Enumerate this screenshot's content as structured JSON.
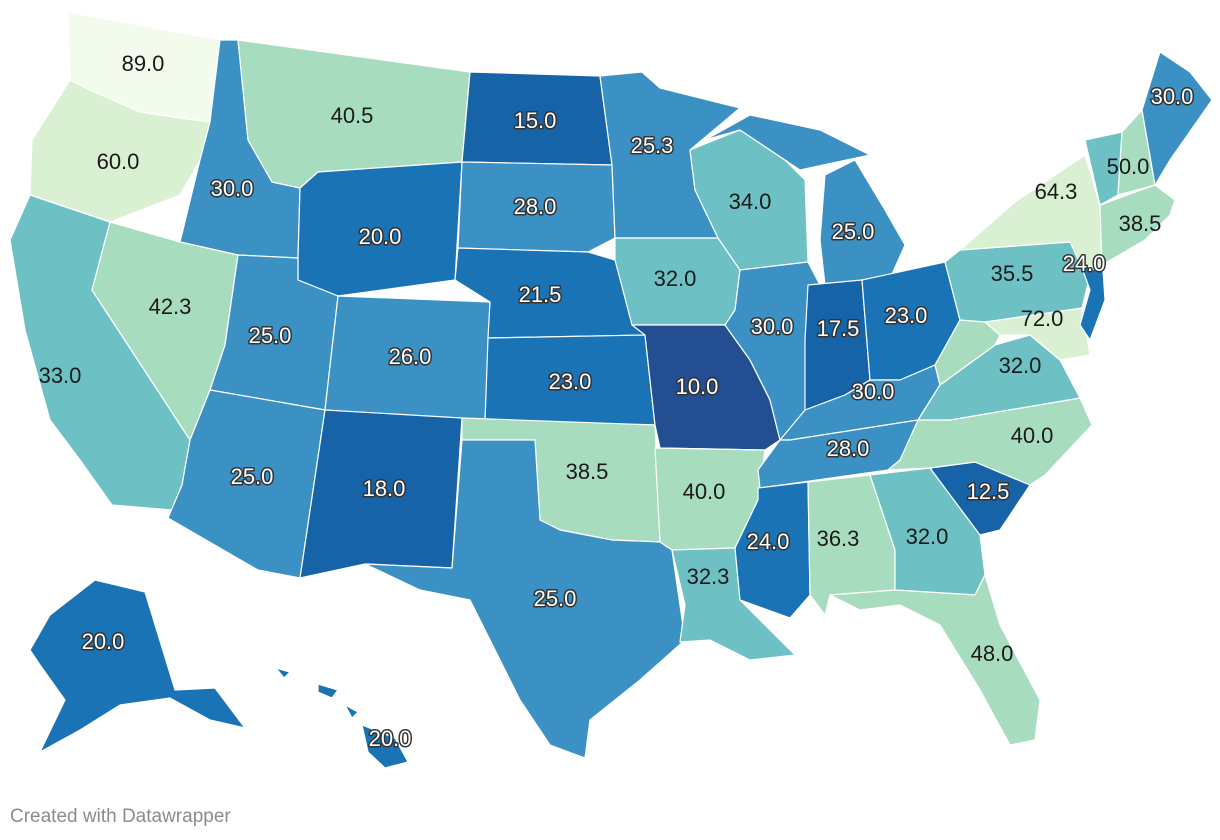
{
  "credit": "Created with Datawrapper",
  "scale_colors": [
    "#f3fbec",
    "#d9f1d2",
    "#a8dcbe",
    "#6dc0c4",
    "#3b90c4",
    "#1a73b5",
    "#1763a8",
    "#234e92"
  ],
  "states": [
    {
      "id": "WA",
      "value": "89.0"
    },
    {
      "id": "OR",
      "value": "60.0"
    },
    {
      "id": "CA",
      "value": "33.0"
    },
    {
      "id": "ID",
      "value": "30.0"
    },
    {
      "id": "NV",
      "value": "42.3"
    },
    {
      "id": "MT",
      "value": "40.5"
    },
    {
      "id": "WY",
      "value": "20.0"
    },
    {
      "id": "UT",
      "value": "25.0"
    },
    {
      "id": "AZ",
      "value": "25.0"
    },
    {
      "id": "CO",
      "value": "26.0"
    },
    {
      "id": "NM",
      "value": "18.0"
    },
    {
      "id": "ND",
      "value": "15.0"
    },
    {
      "id": "SD",
      "value": "28.0"
    },
    {
      "id": "NE",
      "value": "21.5"
    },
    {
      "id": "KS",
      "value": "23.0"
    },
    {
      "id": "OK",
      "value": "38.5"
    },
    {
      "id": "TX",
      "value": "25.0"
    },
    {
      "id": "MN",
      "value": "25.3"
    },
    {
      "id": "IA",
      "value": "32.0"
    },
    {
      "id": "MO",
      "value": "10.0"
    },
    {
      "id": "AR",
      "value": "40.0"
    },
    {
      "id": "LA",
      "value": "32.3"
    },
    {
      "id": "WI",
      "value": "34.0"
    },
    {
      "id": "IL",
      "value": "30.0"
    },
    {
      "id": "MI",
      "value": "25.0"
    },
    {
      "id": "IN",
      "value": "17.5"
    },
    {
      "id": "OH",
      "value": "23.0"
    },
    {
      "id": "KY",
      "value": "30.0"
    },
    {
      "id": "TN",
      "value": "28.0"
    },
    {
      "id": "MS",
      "value": "24.0"
    },
    {
      "id": "AL",
      "value": "36.3"
    },
    {
      "id": "GA",
      "value": "32.0"
    },
    {
      "id": "FL",
      "value": "48.0"
    },
    {
      "id": "SC",
      "value": "12.5"
    },
    {
      "id": "NC",
      "value": "40.0"
    },
    {
      "id": "VA",
      "value": "32.0"
    },
    {
      "id": "WV",
      "value": ""
    },
    {
      "id": "PA",
      "value": "35.5"
    },
    {
      "id": "NY",
      "value": "64.3"
    },
    {
      "id": "VT",
      "value": ""
    },
    {
      "id": "NH",
      "value": "50.0"
    },
    {
      "id": "ME",
      "value": "30.0"
    },
    {
      "id": "MA",
      "value": "38.5"
    },
    {
      "id": "NJ",
      "value": "24.0"
    },
    {
      "id": "MD",
      "value": "72.0"
    },
    {
      "id": "AK",
      "value": "20.0"
    },
    {
      "id": "HI",
      "value": "20.0"
    }
  ]
}
